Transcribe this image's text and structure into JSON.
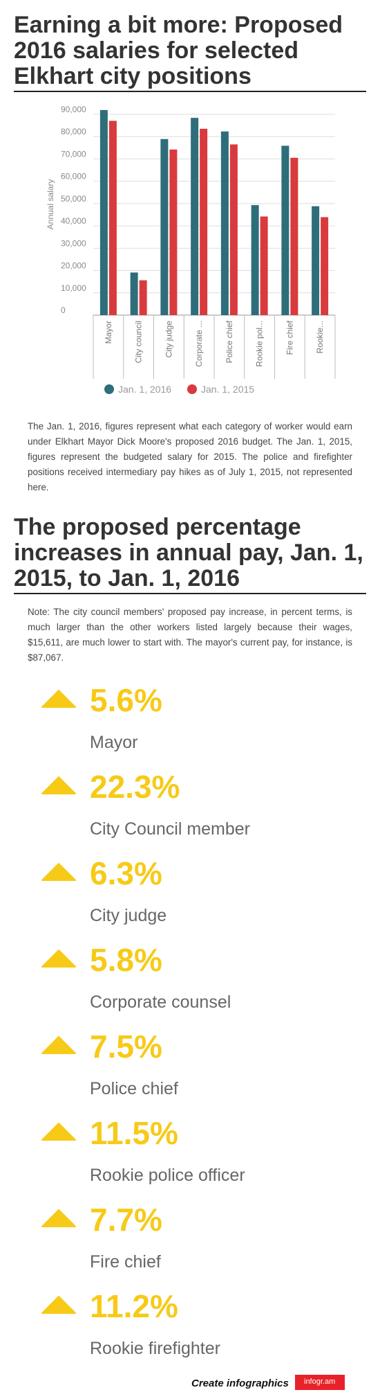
{
  "title1": "Earning a bit more: Proposed 2016 salaries for selected Elkhart city positions",
  "chart_data": {
    "type": "bar",
    "ylabel": "Annual salary",
    "ylim": [
      0,
      90000
    ],
    "y_ticks": [
      "0",
      "10,000",
      "20,000",
      "30,000",
      "40,000",
      "50,000",
      "60,000",
      "70,000",
      "80,000",
      "90,000"
    ],
    "categories": [
      "Mayor",
      "City council",
      "City judge",
      "Corporate counsel",
      "Police chief",
      "Rookie police officer",
      "Fire chief",
      "Rookie firefighter"
    ],
    "category_labels": [
      "Mayor",
      "City council",
      "City judge",
      "Corporate ...",
      "Police chief",
      "Rookie pol...",
      "Fire chief",
      "Rookie..."
    ],
    "series": [
      {
        "name": "Jan. 1, 2016",
        "color": "#2e6e7a",
        "values": [
          91900,
          19100,
          78900,
          88400,
          82300,
          49300,
          75900,
          48800
        ]
      },
      {
        "name": "Jan. 1, 2015",
        "color": "#d93a3e",
        "values": [
          87067,
          15611,
          74200,
          83500,
          76500,
          44200,
          70500,
          43900
        ]
      }
    ],
    "legend_position": "bottom",
    "grid": true
  },
  "description": "The Jan. 1, 2016, figures represent what each category of worker would earn under Elkhart Mayor Dick Moore's proposed 2016 budget. The Jan. 1, 2015, figures represent the budgeted salary for 2015. The police and firefighter positions received intermediary pay hikes as of July 1, 2015, not represented here.",
  "title2": "The proposed percentage increases in annual pay, Jan. 1, 2015, to Jan. 1, 2016",
  "note": "Note: The city council members' proposed pay increase, in percent terms, is much larger than the other workers listed largely because their wages, $15,611, are much lower to start with. The mayor's current pay, for instance, is $87,067.",
  "increase_color": "#f7ca18",
  "increases": [
    {
      "pct": "5.6%",
      "label": "Mayor"
    },
    {
      "pct": "22.3%",
      "label": "City Council member"
    },
    {
      "pct": "6.3%",
      "label": "City judge"
    },
    {
      "pct": "5.8%",
      "label": "Corporate counsel"
    },
    {
      "pct": "7.5%",
      "label": "Police chief"
    },
    {
      "pct": "11.5%",
      "label": "Rookie police officer"
    },
    {
      "pct": "7.7%",
      "label": "Fire chief"
    },
    {
      "pct": "11.2%",
      "label": "Rookie firefighter"
    }
  ],
  "footer": {
    "text": "Create infographics",
    "logo": "infogr.am"
  }
}
